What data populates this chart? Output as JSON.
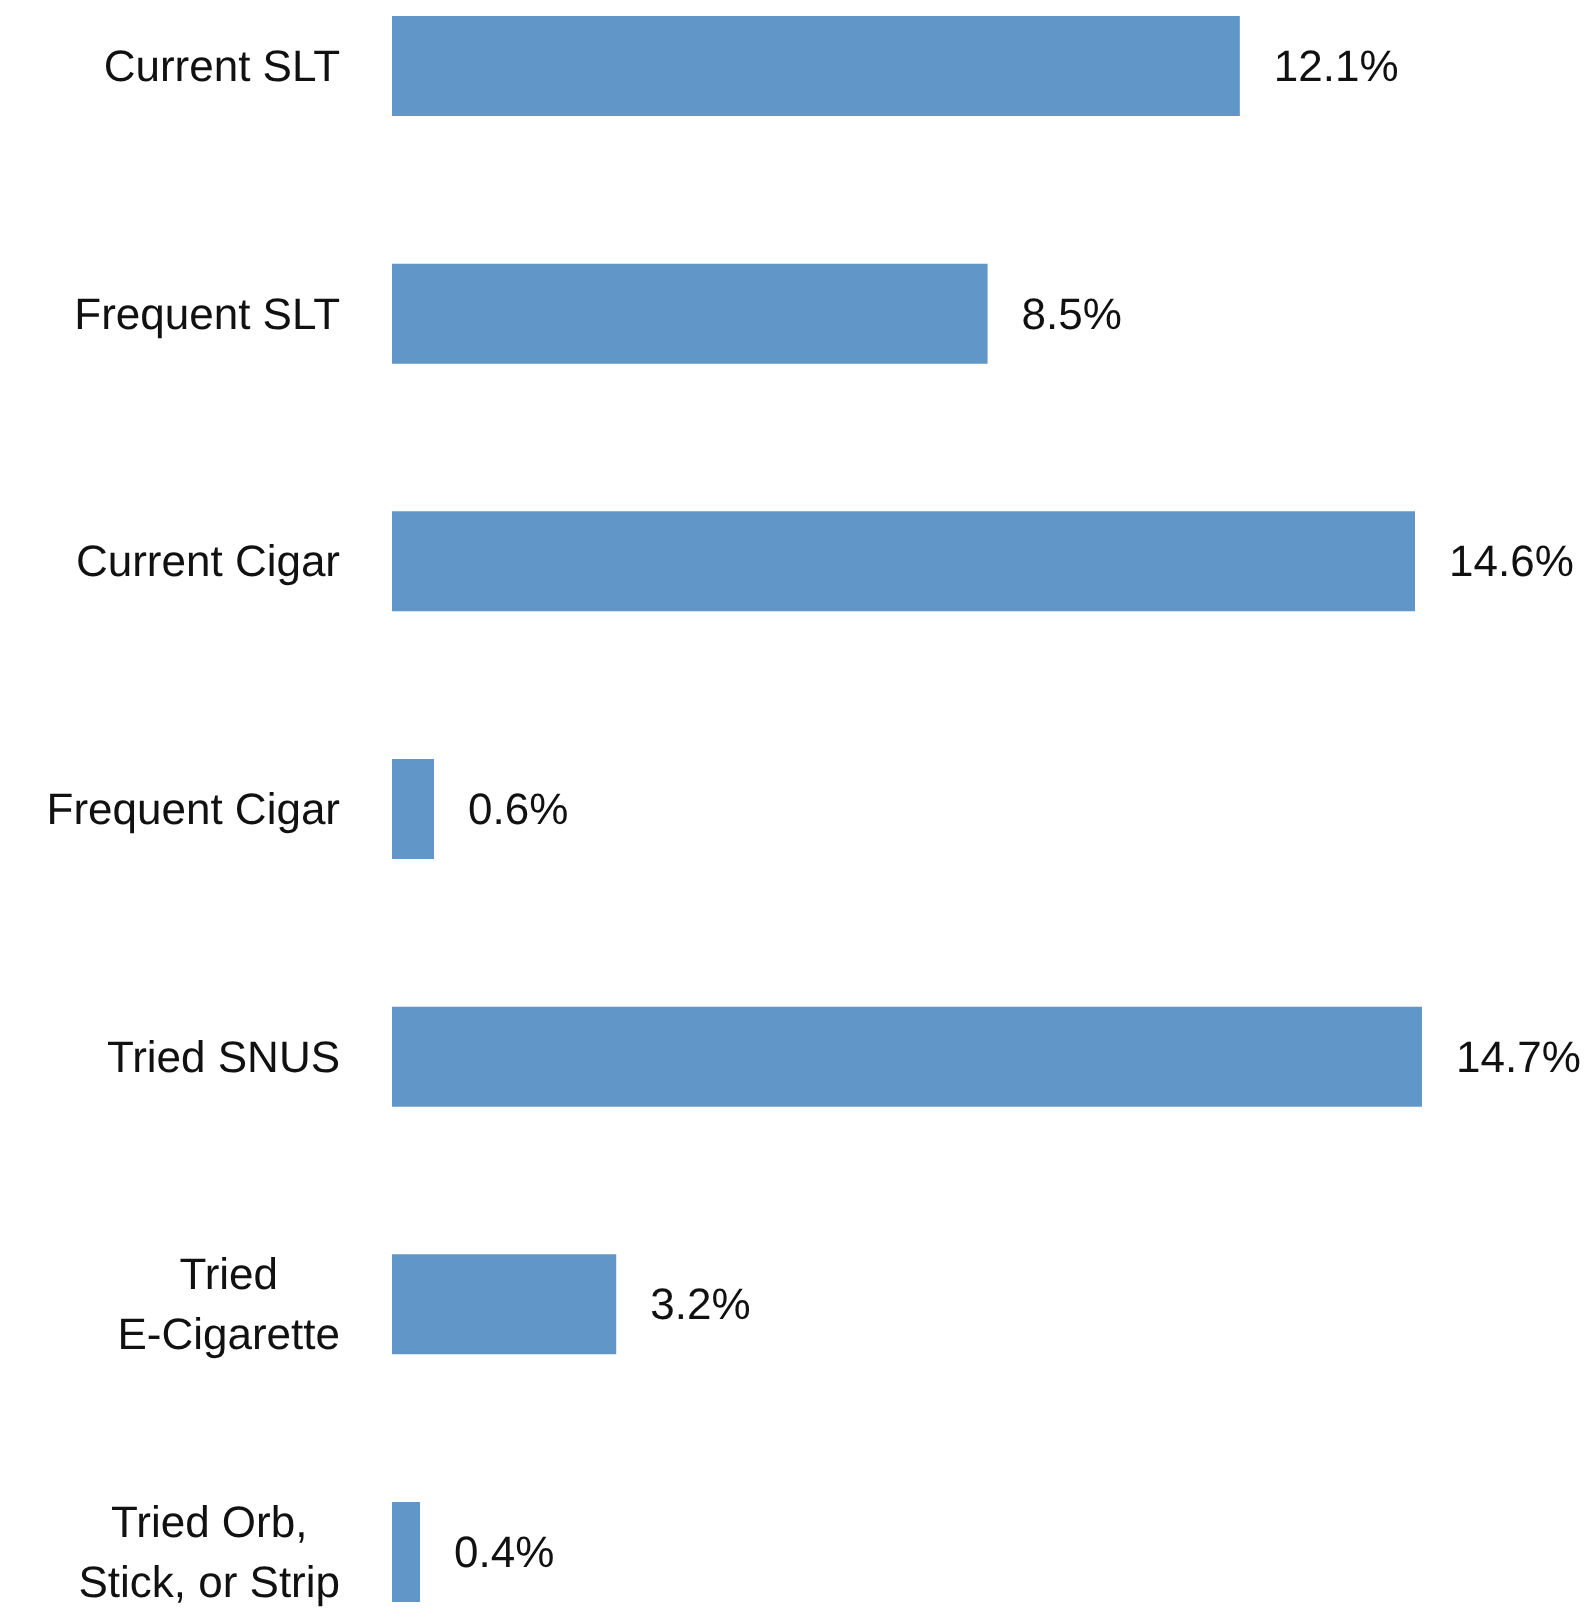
{
  "chart_data": {
    "type": "bar",
    "orientation": "horizontal",
    "categories": [
      "Current SLT",
      "Frequent SLT",
      "Current Cigar",
      "Frequent Cigar",
      "Tried SNUS",
      "Tried\nE-Cigarette",
      "Tried Orb,\nStick, or Strip"
    ],
    "values": [
      12.1,
      8.5,
      14.6,
      0.6,
      14.7,
      3.2,
      0.4
    ],
    "value_labels": [
      "12.1%",
      "8.5%",
      "14.6%",
      "0.6%",
      "14.7%",
      "3.2%",
      "0.4%"
    ],
    "color": "#6096c8"
  }
}
